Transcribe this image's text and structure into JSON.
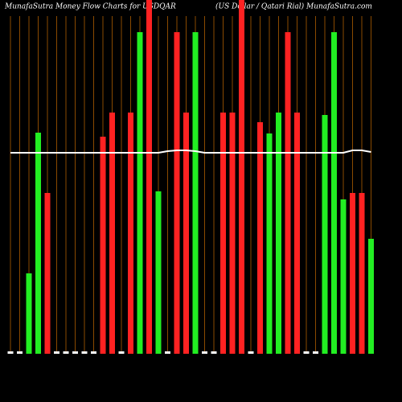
{
  "chart_data": {
    "type": "bar",
    "title": "MunafaSutra  Money Flow  Charts for USDQAR",
    "subtitle": "(US Dollar / Qatari  Rial) MunafaSutra.com",
    "categories": [
      null,
      null,
      null,
      null,
      null,
      null,
      null,
      null,
      null,
      null,
      null,
      null,
      null,
      null,
      null,
      null,
      null,
      null,
      null,
      null,
      null,
      null,
      null,
      null,
      null,
      null,
      null,
      null,
      null,
      null,
      null,
      null,
      null,
      null,
      null,
      null,
      null,
      null,
      null,
      null
    ],
    "series": [
      {
        "values": [
          3,
          3,
          100,
          275,
          200,
          3,
          3,
          3,
          3,
          3,
          270,
          300,
          3,
          300,
          400,
          440,
          202,
          3,
          400,
          300,
          400,
          3,
          3,
          300,
          300,
          440,
          3,
          288,
          274,
          300,
          400,
          300,
          3,
          3,
          297,
          400,
          192,
          200,
          200,
          143
        ],
        "colors": [
          "#ffffff",
          "#ffffff",
          "#22ee22",
          "#22ee22",
          "#ff2222",
          "#ffffff",
          "#ffffff",
          "#ffffff",
          "#ffffff",
          "#ffffff",
          "#ff2222",
          "#ff2222",
          "#ffffff",
          "#ff2222",
          "#22ee22",
          "#ff2222",
          "#22ee22",
          "#ffffff",
          "#ff2222",
          "#ff2222",
          "#22ee22",
          "#ffffff",
          "#ffffff",
          "#ff2222",
          "#ff2222",
          "#ff2222",
          "#ffffff",
          "#ff2222",
          "#22ee22",
          "#22ee22",
          "#ff2222",
          "#ff2222",
          "#ffffff",
          "#ffffff",
          "#22ee22",
          "#22ee22",
          "#22ee22",
          "#ff2222",
          "#ff2222",
          "#22ee22"
        ]
      },
      {
        "type": "line",
        "color": "#ffffff",
        "values": [
          250,
          250,
          250,
          250,
          250,
          250,
          250,
          250,
          250,
          250,
          250,
          250,
          250,
          250,
          250,
          250,
          250,
          252,
          253,
          253,
          252,
          250,
          250,
          250,
          250,
          250,
          250,
          250,
          250,
          250,
          250,
          250,
          250,
          250,
          250,
          250,
          250,
          253,
          253,
          251
        ]
      }
    ],
    "grid_color": "#8a4a00",
    "ylim": [
      0,
      440
    ]
  }
}
